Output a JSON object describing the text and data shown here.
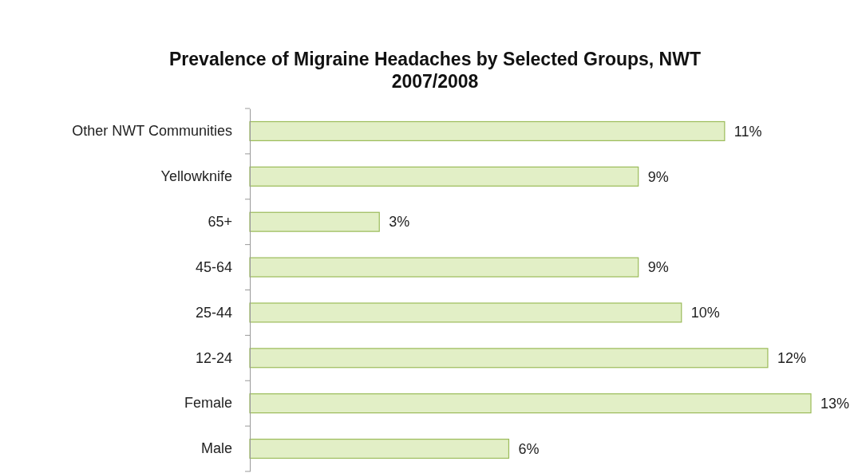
{
  "chart_data": {
    "type": "bar",
    "orientation": "horizontal",
    "title": "Prevalence of Migraine Headaches by Selected Groups, NWT 2007/2008",
    "categories": [
      "Other NWT Communities",
      "Yellowknife",
      "65+",
      "45-64",
      "25-44",
      "12-24",
      "Female",
      "Male"
    ],
    "values": [
      11,
      9,
      3,
      9,
      10,
      12,
      13,
      6
    ],
    "value_labels": [
      "11%",
      "9%",
      "3%",
      "9%",
      "10%",
      "12%",
      "13%",
      "6%"
    ],
    "color": "#e2efc6"
  }
}
